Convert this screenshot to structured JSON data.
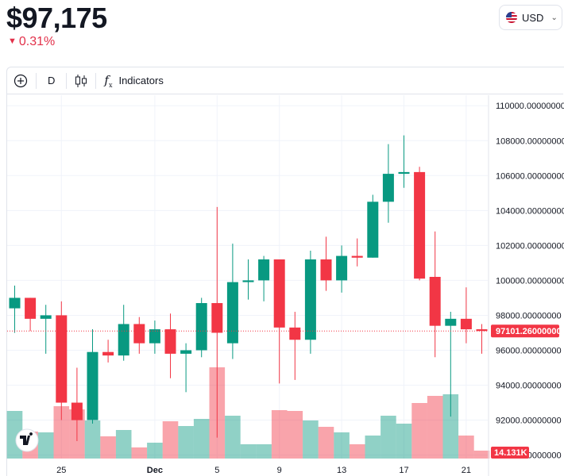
{
  "header": {
    "price": "$97,175",
    "change": "0.31%",
    "change_color": "#e2314a",
    "currency": "USD"
  },
  "toolbar": {
    "add_icon": "plus-circle-icon",
    "interval": "D",
    "chart_type_icon": "candlestick-icon",
    "indicators_icon": "function-icon",
    "indicators_label": "Indicators"
  },
  "chart_data": {
    "type": "candlestick",
    "price_axis": {
      "ticks": [
        "110000.00000000",
        "108000.00000000",
        "106000.00000000",
        "104000.00000000",
        "102000.00000000",
        "100000.00000000",
        "98000.00000000",
        "96000.00000000",
        "94000.00000000",
        "92000.00000000",
        "90000.00000000"
      ],
      "ylim": [
        89800,
        110600
      ]
    },
    "x_tick_labels": [
      {
        "label": "25",
        "index": 3
      },
      {
        "label": "Dec",
        "index": 9
      },
      {
        "label": "5",
        "index": 13
      },
      {
        "label": "9",
        "index": 17
      },
      {
        "label": "13",
        "index": 21
      },
      {
        "label": "17",
        "index": 25
      },
      {
        "label": "21",
        "index": 29
      }
    ],
    "last_price_label": "97101.26000000",
    "last_price": 97101.26,
    "volume_label": "14.131K",
    "up_color": "#089981",
    "down_color": "#f23645",
    "candles": [
      {
        "o": 98400,
        "h": 99700,
        "l": 97000,
        "c": 99000
      },
      {
        "o": 99000,
        "h": 99000,
        "l": 97100,
        "c": 97800
      },
      {
        "o": 97800,
        "h": 98600,
        "l": 95800,
        "c": 98000
      },
      {
        "o": 98000,
        "h": 98800,
        "l": 92000,
        "c": 93000
      },
      {
        "o": 93000,
        "h": 95000,
        "l": 90800,
        "c": 92000
      },
      {
        "o": 92000,
        "h": 97200,
        "l": 91800,
        "c": 95900
      },
      {
        "o": 95900,
        "h": 96600,
        "l": 95300,
        "c": 95700
      },
      {
        "o": 95700,
        "h": 98600,
        "l": 95400,
        "c": 97500
      },
      {
        "o": 97500,
        "h": 97900,
        "l": 95800,
        "c": 96400
      },
      {
        "o": 96400,
        "h": 97700,
        "l": 95800,
        "c": 97200
      },
      {
        "o": 97200,
        "h": 98100,
        "l": 94400,
        "c": 95800
      },
      {
        "o": 95800,
        "h": 96400,
        "l": 93600,
        "c": 96000
      },
      {
        "o": 96000,
        "h": 99000,
        "l": 95600,
        "c": 98700
      },
      {
        "o": 98700,
        "h": 104200,
        "l": 91000,
        "c": 97000
      },
      {
        "o": 96400,
        "h": 102100,
        "l": 95500,
        "c": 99900
      },
      {
        "o": 99900,
        "h": 101200,
        "l": 98900,
        "c": 100000
      },
      {
        "o": 100000,
        "h": 101400,
        "l": 98800,
        "c": 101200
      },
      {
        "o": 101200,
        "h": 101200,
        "l": 94100,
        "c": 97300
      },
      {
        "o": 97300,
        "h": 98200,
        "l": 94300,
        "c": 96600
      },
      {
        "o": 96600,
        "h": 101700,
        "l": 95800,
        "c": 101200
      },
      {
        "o": 101200,
        "h": 102500,
        "l": 99400,
        "c": 100000
      },
      {
        "o": 100000,
        "h": 102000,
        "l": 99300,
        "c": 101400
      },
      {
        "o": 101400,
        "h": 102400,
        "l": 100800,
        "c": 101300
      },
      {
        "o": 101300,
        "h": 104900,
        "l": 101300,
        "c": 104500
      },
      {
        "o": 104500,
        "h": 107800,
        "l": 103300,
        "c": 106100
      },
      {
        "o": 106100,
        "h": 108300,
        "l": 105300,
        "c": 106200
      },
      {
        "o": 106200,
        "h": 106500,
        "l": 100000,
        "c": 100100
      },
      {
        "o": 100200,
        "h": 102800,
        "l": 95600,
        "c": 97400
      },
      {
        "o": 97400,
        "h": 98200,
        "l": 92200,
        "c": 97800
      },
      {
        "o": 97800,
        "h": 99600,
        "l": 96400,
        "c": 97200
      },
      {
        "o": 97200,
        "h": 97500,
        "l": 95800,
        "c": 97100
      }
    ],
    "volumes": [
      {
        "v": 60,
        "up": true
      },
      {
        "v": 34,
        "up": false
      },
      {
        "v": 33,
        "up": true
      },
      {
        "v": 66,
        "up": false
      },
      {
        "v": 62,
        "up": false
      },
      {
        "v": 48,
        "up": true
      },
      {
        "v": 28,
        "up": false
      },
      {
        "v": 36,
        "up": true
      },
      {
        "v": 14,
        "up": false
      },
      {
        "v": 20,
        "up": true
      },
      {
        "v": 47,
        "up": false
      },
      {
        "v": 41,
        "up": true
      },
      {
        "v": 50,
        "up": true
      },
      {
        "v": 115,
        "up": false
      },
      {
        "v": 54,
        "up": true
      },
      {
        "v": 18,
        "up": true
      },
      {
        "v": 18,
        "up": true
      },
      {
        "v": 61,
        "up": false
      },
      {
        "v": 60,
        "up": false
      },
      {
        "v": 48,
        "up": true
      },
      {
        "v": 40,
        "up": false
      },
      {
        "v": 33,
        "up": true
      },
      {
        "v": 18,
        "up": false
      },
      {
        "v": 29,
        "up": true
      },
      {
        "v": 54,
        "up": true
      },
      {
        "v": 44,
        "up": true
      },
      {
        "v": 70,
        "up": false
      },
      {
        "v": 79,
        "up": false
      },
      {
        "v": 81,
        "up": true
      },
      {
        "v": 29,
        "up": false
      },
      {
        "v": 10,
        "up": false
      }
    ]
  }
}
